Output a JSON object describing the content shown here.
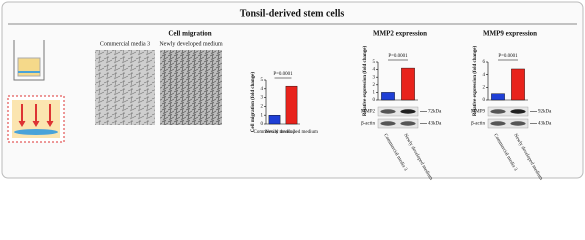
{
  "title": "Tonsil-derived stem cells",
  "images": {
    "labels": [
      "Commercial media 3",
      "Newly developed medium"
    ]
  },
  "blots": [
    {
      "bands": [
        {
          "name": "MMP2",
          "size": "72kDa"
        },
        {
          "name": "β-actin",
          "size": "43kDa"
        }
      ]
    },
    {
      "bands": [
        {
          "name": "MMP9",
          "size": "92kDa"
        },
        {
          "name": "β-actin",
          "size": "43kDa"
        }
      ]
    }
  ],
  "chart_data": [
    {
      "type": "bar",
      "title": "Cell migration",
      "ylabel": "Cell migration (fold change)",
      "annotation": "P=0.0001",
      "categories": [
        "Commercial media 3",
        "Newly developed medium"
      ],
      "values": [
        1,
        4.3
      ],
      "colors": [
        "#1f3fd6",
        "#e8231c"
      ],
      "ylim": [
        0,
        5
      ],
      "yticks": [
        0,
        1,
        2,
        3,
        4,
        5
      ]
    },
    {
      "type": "bar",
      "title": "MMP2 expression",
      "ylabel": "Relative expression (fold change)",
      "annotation": "P=0.0001",
      "categories": [
        "Commercial media 3",
        "Newly developed medium"
      ],
      "values": [
        1,
        4.2
      ],
      "colors": [
        "#1f3fd6",
        "#e8231c"
      ],
      "ylim": [
        0,
        5
      ],
      "yticks": [
        0,
        1,
        2,
        3,
        4,
        5
      ]
    },
    {
      "type": "bar",
      "title": "MMP9 expression",
      "ylabel": "Relative expression (fold change)",
      "annotation": "P=0.0001",
      "categories": [
        "Commercial media 3",
        "Newly developed medium"
      ],
      "values": [
        1,
        4.9
      ],
      "colors": [
        "#1f3fd6",
        "#e8231c"
      ],
      "ylim": [
        0,
        6
      ],
      "yticks": [
        0,
        2,
        4,
        6
      ]
    }
  ]
}
